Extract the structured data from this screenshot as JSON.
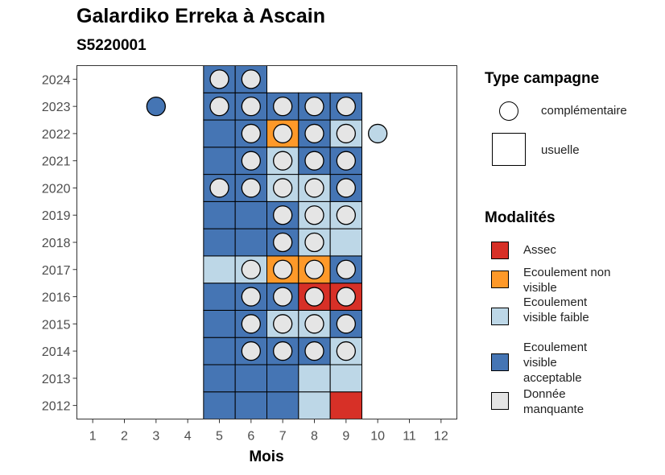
{
  "title": "Galardiko Erreka à Ascain",
  "subtitle": "S5220001",
  "chart_data": {
    "type": "heatmap",
    "xlabel": "Mois",
    "ylabel": "",
    "x_ticks": [
      "1",
      "2",
      "3",
      "4",
      "5",
      "6",
      "7",
      "8",
      "9",
      "10",
      "11",
      "12"
    ],
    "y_ticks": [
      "2012",
      "2013",
      "2014",
      "2015",
      "2016",
      "2017",
      "2018",
      "2019",
      "2020",
      "2021",
      "2022",
      "2023",
      "2024"
    ],
    "xlim": [
      0.5,
      12.5
    ],
    "ylim": [
      2011.5,
      2024.5
    ],
    "grid": false,
    "colors": {
      "Assec": "#d73027",
      "Ecoulement non visible": "#fe9929",
      "Ecoulement visible faible": "#bdd7e7",
      "Ecoulement visible acceptable": "#4575b4",
      "Donnée manquante": "#e5e5e5"
    },
    "usuelle": [
      {
        "month": 5,
        "year": 2012,
        "value": "Ecoulement visible acceptable"
      },
      {
        "month": 6,
        "year": 2012,
        "value": "Ecoulement visible acceptable"
      },
      {
        "month": 7,
        "year": 2012,
        "value": "Ecoulement visible acceptable"
      },
      {
        "month": 8,
        "year": 2012,
        "value": "Ecoulement visible faible"
      },
      {
        "month": 9,
        "year": 2012,
        "value": "Assec"
      },
      {
        "month": 5,
        "year": 2013,
        "value": "Ecoulement visible acceptable"
      },
      {
        "month": 6,
        "year": 2013,
        "value": "Ecoulement visible acceptable"
      },
      {
        "month": 7,
        "year": 2013,
        "value": "Ecoulement visible acceptable"
      },
      {
        "month": 8,
        "year": 2013,
        "value": "Ecoulement visible faible"
      },
      {
        "month": 9,
        "year": 2013,
        "value": "Ecoulement visible faible"
      },
      {
        "month": 5,
        "year": 2014,
        "value": "Ecoulement visible acceptable"
      },
      {
        "month": 6,
        "year": 2014,
        "value": "Ecoulement visible acceptable"
      },
      {
        "month": 7,
        "year": 2014,
        "value": "Ecoulement visible acceptable"
      },
      {
        "month": 8,
        "year": 2014,
        "value": "Ecoulement visible acceptable"
      },
      {
        "month": 9,
        "year": 2014,
        "value": "Ecoulement visible faible"
      },
      {
        "month": 5,
        "year": 2015,
        "value": "Ecoulement visible acceptable"
      },
      {
        "month": 6,
        "year": 2015,
        "value": "Ecoulement visible acceptable"
      },
      {
        "month": 7,
        "year": 2015,
        "value": "Ecoulement visible faible"
      },
      {
        "month": 8,
        "year": 2015,
        "value": "Ecoulement visible faible"
      },
      {
        "month": 9,
        "year": 2015,
        "value": "Ecoulement visible acceptable"
      },
      {
        "month": 5,
        "year": 2016,
        "value": "Ecoulement visible acceptable"
      },
      {
        "month": 6,
        "year": 2016,
        "value": "Ecoulement visible acceptable"
      },
      {
        "month": 7,
        "year": 2016,
        "value": "Ecoulement visible acceptable"
      },
      {
        "month": 8,
        "year": 2016,
        "value": "Assec"
      },
      {
        "month": 9,
        "year": 2016,
        "value": "Assec"
      },
      {
        "month": 5,
        "year": 2017,
        "value": "Ecoulement visible faible"
      },
      {
        "month": 6,
        "year": 2017,
        "value": "Ecoulement visible faible"
      },
      {
        "month": 7,
        "year": 2017,
        "value": "Ecoulement non visible"
      },
      {
        "month": 8,
        "year": 2017,
        "value": "Ecoulement non visible"
      },
      {
        "month": 9,
        "year": 2017,
        "value": "Ecoulement visible acceptable"
      },
      {
        "month": 5,
        "year": 2018,
        "value": "Ecoulement visible acceptable"
      },
      {
        "month": 6,
        "year": 2018,
        "value": "Ecoulement visible acceptable"
      },
      {
        "month": 7,
        "year": 2018,
        "value": "Ecoulement visible acceptable"
      },
      {
        "month": 8,
        "year": 2018,
        "value": "Ecoulement visible faible"
      },
      {
        "month": 9,
        "year": 2018,
        "value": "Ecoulement visible faible"
      },
      {
        "month": 5,
        "year": 2019,
        "value": "Ecoulement visible acceptable"
      },
      {
        "month": 6,
        "year": 2019,
        "value": "Ecoulement visible acceptable"
      },
      {
        "month": 7,
        "year": 2019,
        "value": "Ecoulement visible acceptable"
      },
      {
        "month": 8,
        "year": 2019,
        "value": "Ecoulement visible faible"
      },
      {
        "month": 9,
        "year": 2019,
        "value": "Ecoulement visible faible"
      },
      {
        "month": 5,
        "year": 2020,
        "value": "Ecoulement visible acceptable"
      },
      {
        "month": 6,
        "year": 2020,
        "value": "Ecoulement visible acceptable"
      },
      {
        "month": 7,
        "year": 2020,
        "value": "Ecoulement visible faible"
      },
      {
        "month": 8,
        "year": 2020,
        "value": "Ecoulement visible faible"
      },
      {
        "month": 9,
        "year": 2020,
        "value": "Ecoulement visible acceptable"
      },
      {
        "month": 5,
        "year": 2021,
        "value": "Ecoulement visible acceptable"
      },
      {
        "month": 6,
        "year": 2021,
        "value": "Ecoulement visible acceptable"
      },
      {
        "month": 7,
        "year": 2021,
        "value": "Ecoulement visible faible"
      },
      {
        "month": 8,
        "year": 2021,
        "value": "Ecoulement visible acceptable"
      },
      {
        "month": 9,
        "year": 2021,
        "value": "Ecoulement visible acceptable"
      },
      {
        "month": 5,
        "year": 2022,
        "value": "Ecoulement visible acceptable"
      },
      {
        "month": 6,
        "year": 2022,
        "value": "Ecoulement visible acceptable"
      },
      {
        "month": 7,
        "year": 2022,
        "value": "Ecoulement non visible"
      },
      {
        "month": 8,
        "year": 2022,
        "value": "Ecoulement visible acceptable"
      },
      {
        "month": 9,
        "year": 2022,
        "value": "Ecoulement visible faible"
      },
      {
        "month": 5,
        "year": 2023,
        "value": "Ecoulement visible acceptable"
      },
      {
        "month": 6,
        "year": 2023,
        "value": "Ecoulement visible acceptable"
      },
      {
        "month": 7,
        "year": 2023,
        "value": "Ecoulement visible acceptable"
      },
      {
        "month": 8,
        "year": 2023,
        "value": "Ecoulement visible acceptable"
      },
      {
        "month": 9,
        "year": 2023,
        "value": "Ecoulement visible acceptable"
      },
      {
        "month": 5,
        "year": 2024,
        "value": "Ecoulement visible acceptable"
      },
      {
        "month": 6,
        "year": 2024,
        "value": "Ecoulement visible acceptable"
      }
    ],
    "complementaire": [
      {
        "month": 5,
        "year": 2024,
        "value": "Donnée manquante"
      },
      {
        "month": 6,
        "year": 2024,
        "value": "Donnée manquante"
      },
      {
        "month": 3,
        "year": 2023,
        "value": "Ecoulement visible acceptable"
      },
      {
        "month": 5,
        "year": 2023,
        "value": "Donnée manquante"
      },
      {
        "month": 6,
        "year": 2023,
        "value": "Donnée manquante"
      },
      {
        "month": 7,
        "year": 2023,
        "value": "Donnée manquante"
      },
      {
        "month": 8,
        "year": 2023,
        "value": "Donnée manquante"
      },
      {
        "month": 9,
        "year": 2023,
        "value": "Donnée manquante"
      },
      {
        "month": 6,
        "year": 2022,
        "value": "Donnée manquante"
      },
      {
        "month": 7,
        "year": 2022,
        "value": "Donnée manquante"
      },
      {
        "month": 8,
        "year": 2022,
        "value": "Donnée manquante"
      },
      {
        "month": 9,
        "year": 2022,
        "value": "Donnée manquante"
      },
      {
        "month": 10,
        "year": 2022,
        "value": "Ecoulement visible faible"
      },
      {
        "month": 6,
        "year": 2021,
        "value": "Donnée manquante"
      },
      {
        "month": 7,
        "year": 2021,
        "value": "Donnée manquante"
      },
      {
        "month": 8,
        "year": 2021,
        "value": "Donnée manquante"
      },
      {
        "month": 9,
        "year": 2021,
        "value": "Donnée manquante"
      },
      {
        "month": 5,
        "year": 2020,
        "value": "Donnée manquante"
      },
      {
        "month": 6,
        "year": 2020,
        "value": "Donnée manquante"
      },
      {
        "month": 7,
        "year": 2020,
        "value": "Donnée manquante"
      },
      {
        "month": 8,
        "year": 2020,
        "value": "Donnée manquante"
      },
      {
        "month": 9,
        "year": 2020,
        "value": "Donnée manquante"
      },
      {
        "month": 7,
        "year": 2019,
        "value": "Donnée manquante"
      },
      {
        "month": 8,
        "year": 2019,
        "value": "Donnée manquante"
      },
      {
        "month": 9,
        "year": 2019,
        "value": "Donnée manquante"
      },
      {
        "month": 7,
        "year": 2018,
        "value": "Donnée manquante"
      },
      {
        "month": 8,
        "year": 2018,
        "value": "Donnée manquante"
      },
      {
        "month": 6,
        "year": 2017,
        "value": "Donnée manquante"
      },
      {
        "month": 7,
        "year": 2017,
        "value": "Donnée manquante"
      },
      {
        "month": 8,
        "year": 2017,
        "value": "Donnée manquante"
      },
      {
        "month": 9,
        "year": 2017,
        "value": "Donnée manquante"
      },
      {
        "month": 6,
        "year": 2016,
        "value": "Donnée manquante"
      },
      {
        "month": 7,
        "year": 2016,
        "value": "Donnée manquante"
      },
      {
        "month": 8,
        "year": 2016,
        "value": "Donnée manquante"
      },
      {
        "month": 9,
        "year": 2016,
        "value": "Donnée manquante"
      },
      {
        "month": 6,
        "year": 2015,
        "value": "Donnée manquante"
      },
      {
        "month": 7,
        "year": 2015,
        "value": "Donnée manquante"
      },
      {
        "month": 8,
        "year": 2015,
        "value": "Donnée manquante"
      },
      {
        "month": 9,
        "year": 2015,
        "value": "Donnée manquante"
      },
      {
        "month": 6,
        "year": 2014,
        "value": "Donnée manquante"
      },
      {
        "month": 7,
        "year": 2014,
        "value": "Donnée manquante"
      },
      {
        "month": 8,
        "year": 2014,
        "value": "Donnée manquante"
      },
      {
        "month": 9,
        "year": 2014,
        "value": "Donnée manquante"
      }
    ]
  },
  "legend": {
    "type_title": "Type campagne",
    "type_items": [
      {
        "label": "complémentaire",
        "shape": "circle"
      },
      {
        "label": "usuelle",
        "shape": "square"
      }
    ],
    "mod_title": "Modalités",
    "mod_items": [
      {
        "label": "Assec",
        "color": "#d73027"
      },
      {
        "label": "Ecoulement non visible",
        "color": "#fe9929"
      },
      {
        "label": "Ecoulement visible faible",
        "color": "#bdd7e7"
      },
      {
        "label": "Ecoulement visible acceptable",
        "color": "#4575b4"
      },
      {
        "label": "Donnée manquante",
        "color": "#e5e5e5"
      }
    ]
  }
}
